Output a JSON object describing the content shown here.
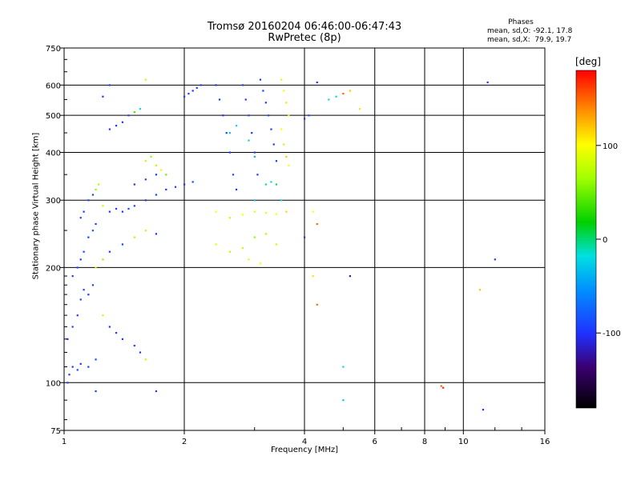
{
  "title_line1": "Tromsø 20160204 06:46:00-06:47:43",
  "title_line2": "RwPretec (8p)",
  "stats": {
    "header": "Phases",
    "line1": "mean, sd,O: -92.1, 17.8",
    "line2": "mean, sd,X:  79.9, 19.7"
  },
  "colorbar": {
    "unit": "[deg]",
    "ticks": [
      "100",
      "0",
      "-100"
    ],
    "tick_values": [
      100,
      0,
      -100
    ],
    "range": [
      -180,
      180
    ]
  },
  "chart_data": {
    "type": "scatter",
    "xlabel": "Frequency [MHz]",
    "ylabel": "Stationary phase Virtual Height [km]",
    "xscale": "log",
    "yscale": "log",
    "xlim": [
      1,
      16
    ],
    "ylim": [
      75,
      750
    ],
    "x_ticks": [
      "1",
      "2",
      "4",
      "6",
      "8",
      "10",
      "16"
    ],
    "x_tick_values": [
      1,
      2,
      4,
      6,
      8,
      10,
      16
    ],
    "y_ticks": [
      "750",
      "600",
      "500",
      "400",
      "300",
      "200",
      "100",
      "75"
    ],
    "y_tick_values": [
      750,
      600,
      500,
      400,
      300,
      200,
      100,
      75
    ],
    "grid": true,
    "color_encoding": "phase (deg)",
    "points": [
      [
        1.02,
        100,
        -95
      ],
      [
        1.03,
        105,
        -100
      ],
      [
        1.05,
        110,
        -100
      ],
      [
        1.08,
        108,
        -90
      ],
      [
        1.1,
        112,
        -100
      ],
      [
        1.15,
        110,
        -95
      ],
      [
        1.2,
        115,
        -90
      ],
      [
        1.02,
        130,
        -100
      ],
      [
        1.05,
        140,
        -95
      ],
      [
        1.08,
        150,
        -100
      ],
      [
        1.1,
        165,
        -90
      ],
      [
        1.12,
        175,
        -95
      ],
      [
        1.15,
        170,
        -100
      ],
      [
        1.18,
        180,
        -95
      ],
      [
        1.05,
        190,
        -100
      ],
      [
        1.08,
        200,
        -90
      ],
      [
        1.1,
        210,
        -100
      ],
      [
        1.12,
        220,
        -95
      ],
      [
        1.15,
        240,
        -100
      ],
      [
        1.18,
        250,
        -80
      ],
      [
        1.2,
        260,
        -100
      ],
      [
        1.1,
        270,
        -95
      ],
      [
        1.12,
        280,
        -100
      ],
      [
        1.15,
        300,
        -90
      ],
      [
        1.18,
        310,
        -95
      ],
      [
        1.2,
        320,
        60
      ],
      [
        1.22,
        330,
        70
      ],
      [
        1.25,
        290,
        80
      ],
      [
        1.3,
        280,
        -100
      ],
      [
        1.35,
        285,
        -95
      ],
      [
        1.4,
        280,
        -100
      ],
      [
        1.45,
        285,
        -90
      ],
      [
        1.5,
        290,
        -95
      ],
      [
        1.6,
        300,
        -100
      ],
      [
        1.7,
        310,
        -95
      ],
      [
        1.8,
        320,
        -100
      ],
      [
        1.9,
        325,
        -95
      ],
      [
        2.0,
        330,
        -100
      ],
      [
        2.1,
        335,
        -90
      ],
      [
        1.5,
        330,
        -100
      ],
      [
        1.6,
        340,
        -95
      ],
      [
        1.7,
        350,
        -100
      ],
      [
        1.6,
        380,
        80
      ],
      [
        1.65,
        390,
        60
      ],
      [
        1.7,
        370,
        70
      ],
      [
        1.75,
        360,
        90
      ],
      [
        1.8,
        350,
        50
      ],
      [
        1.3,
        460,
        -100
      ],
      [
        1.35,
        470,
        -95
      ],
      [
        1.4,
        480,
        -100
      ],
      [
        1.45,
        500,
        -90
      ],
      [
        1.5,
        510,
        40
      ],
      [
        1.55,
        520,
        -20
      ],
      [
        1.6,
        620,
        80
      ],
      [
        1.25,
        560,
        -100
      ],
      [
        1.3,
        600,
        -95
      ],
      [
        1.25,
        150,
        80
      ],
      [
        1.3,
        140,
        -100
      ],
      [
        1.35,
        135,
        -95
      ],
      [
        1.4,
        130,
        -100
      ],
      [
        1.5,
        125,
        -90
      ],
      [
        1.55,
        120,
        -100
      ],
      [
        1.6,
        115,
        80
      ],
      [
        1.2,
        200,
        80
      ],
      [
        1.25,
        210,
        60
      ],
      [
        1.3,
        220,
        -100
      ],
      [
        1.4,
        230,
        -95
      ],
      [
        1.5,
        240,
        70
      ],
      [
        1.6,
        250,
        80
      ],
      [
        1.7,
        245,
        -100
      ],
      [
        2.0,
        560,
        -100
      ],
      [
        2.05,
        570,
        -95
      ],
      [
        2.1,
        580,
        -100
      ],
      [
        2.15,
        590,
        -90
      ],
      [
        2.2,
        600,
        -95
      ],
      [
        2.4,
        600,
        -100
      ],
      [
        2.45,
        550,
        -95
      ],
      [
        2.5,
        500,
        -100
      ],
      [
        2.55,
        450,
        -95
      ],
      [
        2.6,
        400,
        -100
      ],
      [
        2.65,
        350,
        -90
      ],
      [
        2.7,
        320,
        -100
      ],
      [
        2.8,
        600,
        -95
      ],
      [
        2.85,
        550,
        -100
      ],
      [
        2.9,
        500,
        -90
      ],
      [
        2.95,
        450,
        -100
      ],
      [
        3.0,
        400,
        -95
      ],
      [
        3.05,
        350,
        -100
      ],
      [
        3.1,
        620,
        -100
      ],
      [
        3.15,
        580,
        -95
      ],
      [
        3.2,
        540,
        -100
      ],
      [
        3.25,
        500,
        -90
      ],
      [
        3.3,
        460,
        -95
      ],
      [
        3.35,
        420,
        -100
      ],
      [
        3.4,
        380,
        -95
      ],
      [
        3.5,
        620,
        90
      ],
      [
        3.55,
        580,
        100
      ],
      [
        3.6,
        540,
        110
      ],
      [
        3.65,
        500,
        95
      ],
      [
        3.5,
        460,
        100
      ],
      [
        3.55,
        420,
        110
      ],
      [
        3.6,
        390,
        120
      ],
      [
        3.65,
        370,
        100
      ],
      [
        2.6,
        450,
        -30
      ],
      [
        2.7,
        470,
        -20
      ],
      [
        2.9,
        430,
        -10
      ],
      [
        3.0,
        390,
        -40
      ],
      [
        2.4,
        280,
        100
      ],
      [
        2.6,
        270,
        110
      ],
      [
        2.8,
        275,
        100
      ],
      [
        3.0,
        280,
        90
      ],
      [
        3.2,
        278,
        105
      ],
      [
        3.4,
        276,
        100
      ],
      [
        3.6,
        280,
        115
      ],
      [
        2.4,
        230,
        90
      ],
      [
        2.6,
        220,
        70
      ],
      [
        2.8,
        225,
        80
      ],
      [
        3.0,
        240,
        60
      ],
      [
        3.2,
        245,
        70
      ],
      [
        3.4,
        230,
        80
      ],
      [
        2.9,
        210,
        90
      ],
      [
        3.1,
        205,
        100
      ],
      [
        3.2,
        330,
        -10
      ],
      [
        3.3,
        335,
        -20
      ],
      [
        3.4,
        330,
        0
      ],
      [
        3.0,
        300,
        -30
      ],
      [
        3.5,
        300,
        -20
      ],
      [
        4.0,
        490,
        -100
      ],
      [
        4.1,
        500,
        -90
      ],
      [
        4.3,
        610,
        -100
      ],
      [
        4.2,
        280,
        100
      ],
      [
        4.3,
        260,
        150
      ],
      [
        4.2,
        190,
        110
      ],
      [
        4.3,
        160,
        150
      ],
      [
        4.0,
        240,
        -100
      ],
      [
        4.6,
        550,
        -20
      ],
      [
        4.8,
        560,
        -10
      ],
      [
        5.0,
        570,
        150
      ],
      [
        5.2,
        580,
        120
      ],
      [
        5.5,
        520,
        110
      ],
      [
        5.2,
        190,
        -120
      ],
      [
        5.0,
        110,
        -20
      ],
      [
        5.0,
        90,
        -30
      ],
      [
        8.8,
        98,
        150
      ],
      [
        8.9,
        97,
        170
      ],
      [
        11.5,
        610,
        -100
      ],
      [
        12,
        210,
        -100
      ],
      [
        11,
        175,
        120
      ],
      [
        11.2,
        85,
        -100
      ],
      [
        1.2,
        95,
        -100
      ],
      [
        1.7,
        95,
        -100
      ]
    ]
  }
}
